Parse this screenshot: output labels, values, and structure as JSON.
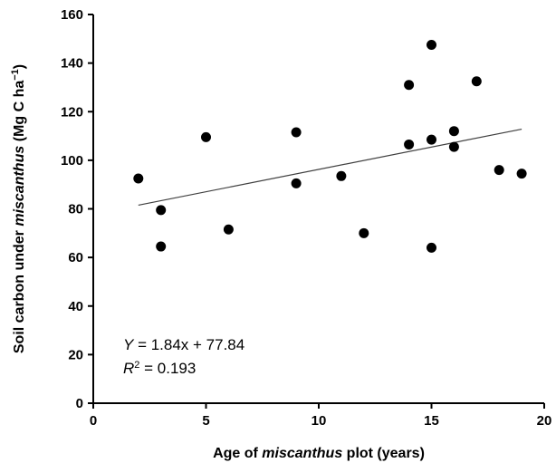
{
  "chart_data": {
    "type": "scatter",
    "title": "",
    "xlabel_parts": [
      {
        "text": "Age of ",
        "italic": false
      },
      {
        "text": "miscanthus",
        "italic": true
      },
      {
        "text": " plot (years)",
        "italic": false
      }
    ],
    "ylabel_parts": [
      {
        "text": "Soil carbon under ",
        "italic": false
      },
      {
        "text": "miscanthus",
        "italic": true
      },
      {
        "text": " (Mg C ha",
        "italic": false
      },
      {
        "text": "−1",
        "italic": false,
        "superscript": true
      },
      {
        "text": ")",
        "italic": false
      }
    ],
    "xlim": [
      0,
      20
    ],
    "ylim": [
      0,
      160
    ],
    "x_ticks": [
      0,
      5,
      10,
      15,
      20
    ],
    "y_ticks": [
      0,
      20,
      40,
      60,
      80,
      100,
      120,
      140,
      160
    ],
    "grid": false,
    "points": [
      {
        "x": 2,
        "y": 92.5
      },
      {
        "x": 3,
        "y": 79.5
      },
      {
        "x": 3,
        "y": 64.5
      },
      {
        "x": 5,
        "y": 109.5
      },
      {
        "x": 6,
        "y": 71.5
      },
      {
        "x": 9,
        "y": 111.5
      },
      {
        "x": 9,
        "y": 90.5
      },
      {
        "x": 11,
        "y": 93.5
      },
      {
        "x": 12,
        "y": 70
      },
      {
        "x": 14,
        "y": 131
      },
      {
        "x": 14,
        "y": 106.5
      },
      {
        "x": 15,
        "y": 147.5
      },
      {
        "x": 15,
        "y": 108.5
      },
      {
        "x": 15,
        "y": 64
      },
      {
        "x": 16,
        "y": 112
      },
      {
        "x": 16,
        "y": 105.5
      },
      {
        "x": 17,
        "y": 132.5
      },
      {
        "x": 18,
        "y": 96
      },
      {
        "x": 19,
        "y": 94.5
      }
    ],
    "trendline": {
      "slope": 1.84,
      "intercept": 77.84,
      "x_range": [
        2,
        19
      ]
    },
    "annotation": {
      "equation_var": "Y",
      "equation_rest": " = 1.84x + 77.84",
      "r2_var": "R",
      "r2_sup": "2",
      "r2_rest": " = 0.193"
    },
    "colors": {
      "points": "#000000",
      "trendline": "#404040",
      "axis": "#000000"
    }
  }
}
